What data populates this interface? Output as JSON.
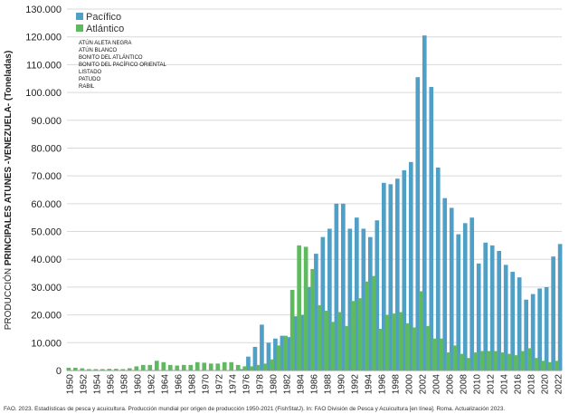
{
  "chart_data": {
    "type": "bar",
    "ylabel_prefix": "PRODUCCIÓN ",
    "ylabel_bold": "PRINCIPALES ATUNES -VENEZUELA- (Toneladas)",
    "ylim": [
      0,
      130000
    ],
    "yticks": [
      0,
      10000,
      20000,
      30000,
      40000,
      50000,
      60000,
      70000,
      80000,
      90000,
      100000,
      110000,
      120000,
      130000
    ],
    "ytick_labels": [
      "0",
      "10.000",
      "20.000",
      "30.000",
      "40.000",
      "50.000",
      "60.000",
      "70.000",
      "80.000",
      "90.000",
      "100.000",
      "110.000",
      "120.000",
      "130.000"
    ],
    "grid": true,
    "legend_position": "top-left",
    "x": [
      1950,
      1951,
      1952,
      1953,
      1954,
      1955,
      1956,
      1957,
      1958,
      1959,
      1960,
      1961,
      1962,
      1963,
      1964,
      1965,
      1966,
      1967,
      1968,
      1969,
      1970,
      1971,
      1972,
      1973,
      1974,
      1975,
      1976,
      1977,
      1978,
      1979,
      1980,
      1981,
      1982,
      1983,
      1984,
      1985,
      1986,
      1987,
      1988,
      1989,
      1990,
      1991,
      1992,
      1993,
      1994,
      1995,
      1996,
      1997,
      1998,
      1999,
      2000,
      2001,
      2002,
      2003,
      2004,
      2005,
      2006,
      2007,
      2008,
      2009,
      2010,
      2011,
      2012,
      2013,
      2014,
      2015,
      2016,
      2017,
      2018,
      2019,
      2020,
      2021,
      2022
    ],
    "xtick_labels": [
      "1950",
      "1952",
      "1954",
      "1956",
      "1958",
      "1960",
      "1962",
      "1964",
      "1966",
      "1968",
      "1970",
      "1972",
      "1974",
      "1976",
      "1978",
      "1980",
      "1982",
      "1984",
      "1986",
      "1988",
      "1990",
      "1992",
      "1994",
      "1996",
      "1998",
      "2000",
      "2002",
      "2004",
      "2006",
      "2008",
      "2010",
      "2012",
      "2014",
      "2016",
      "2018",
      "2020",
      "2022"
    ],
    "series": [
      {
        "name": "Pacífico",
        "color": "#4f9fc6",
        "values": [
          0,
          0,
          0,
          0,
          0,
          0,
          0,
          0,
          0,
          0,
          0,
          0,
          0,
          0,
          0,
          0,
          0,
          0,
          0,
          0,
          0,
          0,
          0,
          0,
          0,
          500,
          5000,
          8500,
          16500,
          10000,
          11500,
          12500,
          12000,
          19500,
          20000,
          30000,
          42000,
          48000,
          51000,
          60000,
          60000,
          51000,
          55000,
          51000,
          48000,
          54000,
          67500,
          67000,
          69000,
          72000,
          75000,
          105500,
          120500,
          102000,
          73000,
          62000,
          58500,
          49000,
          53000,
          55000,
          38500,
          46000,
          45000,
          43000,
          38000,
          35500,
          33500,
          25500,
          27500,
          29500,
          30000,
          41000,
          45500
        ]
      },
      {
        "name": "Atlántico",
        "color": "#5fba5f",
        "values": [
          1000,
          1000,
          800,
          500,
          500,
          500,
          600,
          600,
          500,
          800,
          1500,
          2000,
          2000,
          3500,
          3000,
          2000,
          1800,
          2000,
          2000,
          3000,
          2800,
          2500,
          2500,
          3000,
          3000,
          2000,
          1500,
          1500,
          2000,
          2500,
          4000,
          9000,
          12500,
          29000,
          45000,
          44500,
          36500,
          23500,
          21500,
          17500,
          21000,
          16000,
          25000,
          26000,
          32000,
          34000,
          15000,
          20000,
          20500,
          21000,
          17000,
          15500,
          28500,
          16000,
          11500,
          11500,
          6500,
          9000,
          6000,
          4500,
          6500,
          7000,
          7000,
          7000,
          6500,
          6000,
          5500,
          7000,
          8000,
          4500,
          3500,
          3000,
          3500
        ]
      }
    ],
    "species_list": [
      "Atún aleta negra",
      "Atún blanco",
      "Bonito del Atlántico",
      "Bonito del Pacífico oriental",
      "Listado",
      "Patudo",
      "Rabil"
    ],
    "source": "FAO. 2023. Estadísticas de pesca y acuicultura. Producción mundial por origen de producción 1950-2021 (FishStatJ). In: FAO División de Pesca y Acuicultura [en línea]. Roma. Actualización 2023."
  }
}
